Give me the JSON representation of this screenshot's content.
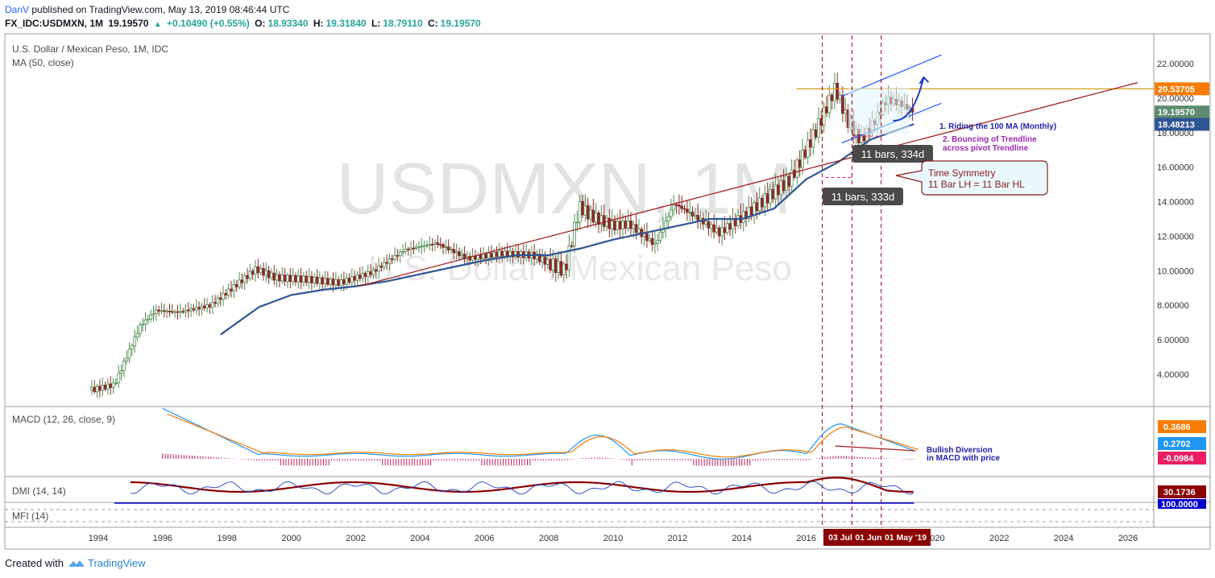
{
  "header": {
    "author": "DanV",
    "published": "published on TradingView.com, May 13, 2019 08:46:44 UTC",
    "symbol": "FX_IDC:USDMXN, 1M",
    "price": "19.19570",
    "change": "+0.10490 (+0.55%)",
    "open": "18.93340",
    "high": "19.31840",
    "low": "18.79110",
    "close": "19.19570"
  },
  "main_pane": {
    "title": "U.S. Dollar / Mexican Peso, 1M, IDC",
    "indicator": "MA (50, close)",
    "watermark_symbol": "USDMXN, 1M",
    "watermark_name": "U.S. Dollar / Mexican Peso"
  },
  "price_axis": {
    "ticks": [
      "22.00000",
      "20.00000",
      "18.00000",
      "16.00000",
      "14.00000",
      "12.00000",
      "10.00000",
      "8.00000",
      "6.00000",
      "4.00000"
    ],
    "badges": [
      {
        "text": "20.53705",
        "color": "#f57c00"
      },
      {
        "text": "19.19570",
        "color": "#5d8c6e"
      },
      {
        "text": "18.48213",
        "color": "#2f5597"
      }
    ]
  },
  "macd_pane": {
    "title": "MACD (12, 26, close, 9)",
    "badges": [
      {
        "text": "0.3686",
        "color": "#f57c00"
      },
      {
        "text": "0.2702",
        "color": "#2196f3"
      },
      {
        "text": "-0.0984",
        "color": "#e91e63"
      }
    ],
    "note_line1": "Bullish Diversion",
    "note_line2": "in MACD with price"
  },
  "dmi_pane": {
    "title": "DMI (14, 14)",
    "badge": {
      "text": "30.1736",
      "color": "#8b0000"
    }
  },
  "mfi_pane": {
    "title": "MFI (14)",
    "badge": {
      "text": "100.0000",
      "color": "#0000cc"
    }
  },
  "time_axis": {
    "ticks": [
      "1994",
      "1996",
      "1998",
      "2000",
      "2002",
      "2004",
      "2006",
      "2008",
      "2010",
      "2012",
      "2014",
      "2016",
      "2018",
      "2020",
      "2022",
      "2024",
      "2026"
    ],
    "markers": [
      "03 Jul",
      "01 Jun",
      "01 May '19"
    ]
  },
  "annotations": {
    "note1": "1. Riding the 100 MA (Monthly)",
    "note2_line1": "2. Bouncing of Trendline",
    "note2_line2": "across pivot Trendline",
    "bars_label_1": "11 bars, 334d",
    "bars_label_2": "11 bars, 333d",
    "callout_line1": "Time Symmetry",
    "callout_line2": "11 Bar LH = 11 Bar HL"
  },
  "footer": {
    "created_with": "Created with",
    "brand": "TradingView"
  },
  "chart_data": {
    "type": "candlestick",
    "title": "U.S. Dollar / Mexican Peso, 1M, IDC",
    "x_range": [
      "1993",
      "2027"
    ],
    "ylim": [
      2.8,
      23.2
    ],
    "series": [
      {
        "name": "USDMXN monthly close (approx.)",
        "x": [
          "1993.8",
          "1994.5",
          "1994.95",
          "1995.3",
          "1995.8",
          "1996.5",
          "1997.5",
          "1998.5",
          "1998.9",
          "1999.5",
          "2000.5",
          "2001.5",
          "2002.5",
          "2003.5",
          "2004.5",
          "2005.5",
          "2006.5",
          "2007.5",
          "2008.5",
          "2008.95",
          "2009.3",
          "2010",
          "2010.5",
          "2011.3",
          "2011.9",
          "2012.5",
          "2013.3",
          "2014",
          "2014.9",
          "2015.5",
          "2016.3",
          "2016.9",
          "2017.3",
          "2017.7",
          "2018.1",
          "2018.5",
          "2018.9",
          "2019.35"
        ],
        "values": [
          3.1,
          3.4,
          5.3,
          6.8,
          7.7,
          7.6,
          8.0,
          9.5,
          10.1,
          9.6,
          9.5,
          9.3,
          9.9,
          11.2,
          11.6,
          10.7,
          11.0,
          10.9,
          10.0,
          13.7,
          13.2,
          12.6,
          12.7,
          11.5,
          13.9,
          13.2,
          12.2,
          13.1,
          14.4,
          15.3,
          18.1,
          20.6,
          18.6,
          17.5,
          18.6,
          19.9,
          19.7,
          19.2
        ]
      },
      {
        "name": "MA (50, close)",
        "x": [
          "1997.8",
          "1999",
          "2000",
          "2001",
          "2002",
          "2003",
          "2004",
          "2005",
          "2006",
          "2007",
          "2008",
          "2009",
          "2010",
          "2011",
          "2012",
          "2013",
          "2014",
          "2015",
          "2016",
          "2017",
          "2018",
          "2019.35"
        ],
        "values": [
          6.3,
          7.9,
          8.6,
          8.9,
          9.1,
          9.4,
          9.8,
          10.2,
          10.6,
          10.9,
          10.9,
          11.3,
          11.8,
          12.2,
          12.6,
          13.0,
          13.0,
          13.6,
          15.3,
          16.3,
          17.6,
          18.5
        ]
      }
    ],
    "levels": [
      {
        "name": "horizontal level",
        "value": 20.53705
      }
    ],
    "macd": {
      "macd": 0.2702,
      "signal": 0.3686,
      "histogram": -0.0984
    },
    "dmi": {
      "value": 30.1736
    },
    "mfi": {
      "value": 100.0
    }
  }
}
